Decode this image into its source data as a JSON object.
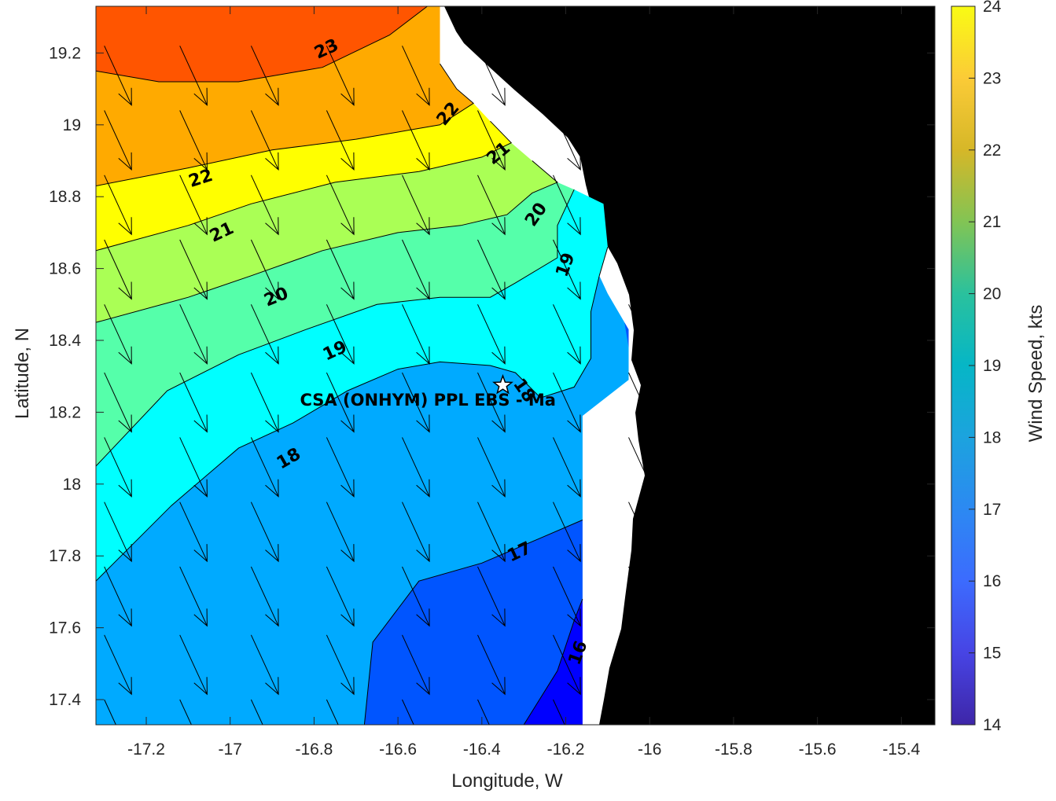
{
  "chart_data": {
    "type": "contour",
    "xlabel": "Longitude, W",
    "ylabel": "Latitude, N",
    "xlim": [
      -17.32,
      -15.32
    ],
    "ylim": [
      17.33,
      19.33
    ],
    "xticks": [
      -17.2,
      -17,
      -16.8,
      -16.6,
      -16.4,
      -16.2,
      -16,
      -15.8,
      -15.6,
      -15.4
    ],
    "xtick_labels": [
      "-17.2",
      "-17",
      "-16.8",
      "-16.6",
      "-16.4",
      "-16.2",
      "-16",
      "-15.8",
      "-15.6",
      "-15.4"
    ],
    "yticks": [
      17.4,
      17.6,
      17.8,
      18,
      18.2,
      18.4,
      18.6,
      18.8,
      19,
      19.2
    ],
    "ytick_labels": [
      "17.4",
      "17.6",
      "17.8",
      "18",
      "18.2",
      "18.4",
      "18.6",
      "18.8",
      "19",
      "19.2"
    ],
    "colorbar": {
      "label": "Wind Speed, kts",
      "range": [
        14,
        24
      ],
      "ticks": [
        14,
        15,
        16,
        17,
        18,
        19,
        20,
        21,
        22,
        23,
        24
      ],
      "tick_labels": [
        "14",
        "15",
        "16",
        "17",
        "18",
        "19",
        "20",
        "21",
        "22",
        "23",
        "24"
      ]
    },
    "contour_levels": [
      16,
      17,
      18,
      19,
      20,
      21,
      22,
      23
    ],
    "bands": [
      {
        "level": 24,
        "color": "#ff5500",
        "polygon": [
          [
            -17.32,
            19.33
          ],
          [
            -16.53,
            19.33
          ],
          [
            -16.62,
            19.25
          ],
          [
            -16.78,
            19.16
          ],
          [
            -16.98,
            19.12
          ],
          [
            -17.17,
            19.12
          ],
          [
            -17.32,
            19.15
          ]
        ]
      },
      {
        "level": 23,
        "color": "#ffaa00",
        "polygon": [
          [
            -17.32,
            19.15
          ],
          [
            -17.17,
            19.12
          ],
          [
            -16.98,
            19.12
          ],
          [
            -16.78,
            19.16
          ],
          [
            -16.62,
            19.25
          ],
          [
            -16.53,
            19.33
          ],
          [
            -16.5,
            19.33
          ],
          [
            -16.5,
            19.17
          ],
          [
            -16.46,
            19.1
          ],
          [
            -16.42,
            19.06
          ],
          [
            -16.5,
            19.0
          ],
          [
            -16.7,
            18.96
          ],
          [
            -16.9,
            18.93
          ],
          [
            -17.1,
            18.88
          ],
          [
            -17.32,
            18.83
          ]
        ]
      },
      {
        "level": 22,
        "color": "#ffff00",
        "polygon": [
          [
            -17.32,
            18.83
          ],
          [
            -17.1,
            18.88
          ],
          [
            -16.9,
            18.93
          ],
          [
            -16.7,
            18.96
          ],
          [
            -16.5,
            19.0
          ],
          [
            -16.42,
            19.06
          ],
          [
            -16.38,
            19.01
          ],
          [
            -16.33,
            18.95
          ],
          [
            -16.4,
            18.91
          ],
          [
            -16.55,
            18.87
          ],
          [
            -16.75,
            18.84
          ],
          [
            -16.95,
            18.78
          ],
          [
            -17.1,
            18.72
          ],
          [
            -17.32,
            18.65
          ]
        ]
      },
      {
        "level": 21,
        "color": "#aaff55",
        "polygon": [
          [
            -17.32,
            18.65
          ],
          [
            -17.1,
            18.72
          ],
          [
            -16.95,
            18.78
          ],
          [
            -16.75,
            18.84
          ],
          [
            -16.55,
            18.87
          ],
          [
            -16.4,
            18.91
          ],
          [
            -16.33,
            18.95
          ],
          [
            -16.28,
            18.9
          ],
          [
            -16.22,
            18.84
          ],
          [
            -16.28,
            18.81
          ],
          [
            -16.34,
            18.75
          ],
          [
            -16.45,
            18.72
          ],
          [
            -16.6,
            18.7
          ],
          [
            -16.78,
            18.65
          ],
          [
            -16.95,
            18.58
          ],
          [
            -17.1,
            18.52
          ],
          [
            -17.32,
            18.45
          ]
        ]
      },
      {
        "level": 20,
        "color": "#55ffaa",
        "polygon": [
          [
            -17.32,
            18.45
          ],
          [
            -17.1,
            18.52
          ],
          [
            -16.95,
            18.58
          ],
          [
            -16.78,
            18.65
          ],
          [
            -16.6,
            18.7
          ],
          [
            -16.45,
            18.72
          ],
          [
            -16.34,
            18.75
          ],
          [
            -16.28,
            18.81
          ],
          [
            -16.22,
            18.84
          ],
          [
            -16.18,
            18.82
          ],
          [
            -16.22,
            18.72
          ],
          [
            -16.22,
            18.63
          ],
          [
            -16.32,
            18.56
          ],
          [
            -16.38,
            18.52
          ],
          [
            -16.5,
            18.52
          ],
          [
            -16.65,
            18.5
          ],
          [
            -16.82,
            18.43
          ],
          [
            -16.98,
            18.36
          ],
          [
            -17.15,
            18.26
          ],
          [
            -17.32,
            18.05
          ]
        ]
      },
      {
        "level": 19,
        "color": "#00ffff",
        "polygon": [
          [
            -17.32,
            18.05
          ],
          [
            -17.15,
            18.26
          ],
          [
            -16.98,
            18.36
          ],
          [
            -16.82,
            18.43
          ],
          [
            -16.65,
            18.5
          ],
          [
            -16.5,
            18.52
          ],
          [
            -16.38,
            18.52
          ],
          [
            -16.32,
            18.56
          ],
          [
            -16.22,
            18.63
          ],
          [
            -16.22,
            18.72
          ],
          [
            -16.18,
            18.82
          ],
          [
            -16.11,
            18.78
          ],
          [
            -16.1,
            18.66
          ],
          [
            -16.12,
            18.58
          ],
          [
            -16.14,
            18.48
          ],
          [
            -16.14,
            18.35
          ],
          [
            -16.18,
            18.27
          ],
          [
            -16.26,
            18.24
          ],
          [
            -16.32,
            18.31
          ],
          [
            -16.38,
            18.33
          ],
          [
            -16.5,
            18.34
          ],
          [
            -16.6,
            18.32
          ],
          [
            -16.72,
            18.26
          ],
          [
            -16.85,
            18.17
          ],
          [
            -16.98,
            18.1
          ],
          [
            -17.14,
            17.94
          ],
          [
            -17.32,
            17.73
          ]
        ]
      },
      {
        "level": 18,
        "color": "#00aaff",
        "polygon": [
          [
            -17.32,
            17.73
          ],
          [
            -17.14,
            17.94
          ],
          [
            -16.98,
            18.1
          ],
          [
            -16.85,
            18.17
          ],
          [
            -16.72,
            18.26
          ],
          [
            -16.6,
            18.32
          ],
          [
            -16.5,
            18.34
          ],
          [
            -16.38,
            18.33
          ],
          [
            -16.32,
            18.31
          ],
          [
            -16.26,
            18.24
          ],
          [
            -16.18,
            18.27
          ],
          [
            -16.14,
            18.35
          ],
          [
            -16.14,
            18.48
          ],
          [
            -16.12,
            18.58
          ],
          [
            -16.1,
            18.53
          ],
          [
            -16.05,
            18.43
          ],
          [
            -16.05,
            18.29
          ],
          [
            -16.16,
            18.19
          ],
          [
            -16.16,
            17.9
          ],
          [
            -16.26,
            17.85
          ],
          [
            -16.4,
            17.78
          ],
          [
            -16.55,
            17.73
          ],
          [
            -16.66,
            17.56
          ],
          [
            -16.68,
            17.33
          ],
          [
            -17.32,
            17.33
          ]
        ]
      },
      {
        "level": 17,
        "color": "#0055ff",
        "polygon": [
          [
            -16.68,
            17.33
          ],
          [
            -16.66,
            17.56
          ],
          [
            -16.55,
            17.73
          ],
          [
            -16.4,
            17.78
          ],
          [
            -16.26,
            17.85
          ],
          [
            -16.16,
            17.9
          ],
          [
            -16.16,
            17.68
          ],
          [
            -16.18,
            17.62
          ],
          [
            -16.22,
            17.48
          ],
          [
            -16.3,
            17.33
          ]
        ]
      },
      {
        "level": 16,
        "color": "#0000ff",
        "polygon": [
          [
            -16.3,
            17.33
          ],
          [
            -16.22,
            17.48
          ],
          [
            -16.18,
            17.62
          ],
          [
            -16.16,
            17.68
          ],
          [
            -16.16,
            17.33
          ]
        ]
      },
      {
        "level": 17,
        "color": "#0055ff",
        "polygon": [
          [
            -16.1,
            18.53
          ],
          [
            -16.06,
            18.45
          ],
          [
            -16.05,
            18.38
          ],
          [
            -16.05,
            18.43
          ]
        ]
      }
    ],
    "contour_lines": [
      {
        "level": 23,
        "points": [
          [
            -17.32,
            19.15
          ],
          [
            -17.17,
            19.12
          ],
          [
            -16.98,
            19.12
          ],
          [
            -16.78,
            19.16
          ],
          [
            -16.62,
            19.25
          ],
          [
            -16.53,
            19.33
          ]
        ]
      },
      {
        "level": 22,
        "points": [
          [
            -17.32,
            18.83
          ],
          [
            -17.1,
            18.88
          ],
          [
            -16.9,
            18.93
          ],
          [
            -16.7,
            18.96
          ],
          [
            -16.5,
            19.0
          ],
          [
            -16.42,
            19.06
          ],
          [
            -16.46,
            19.1
          ],
          [
            -16.5,
            19.17
          ]
        ]
      },
      {
        "level": 21,
        "points": [
          [
            -17.32,
            18.65
          ],
          [
            -17.1,
            18.72
          ],
          [
            -16.95,
            18.78
          ],
          [
            -16.75,
            18.84
          ],
          [
            -16.55,
            18.87
          ],
          [
            -16.4,
            18.91
          ],
          [
            -16.33,
            18.95
          ],
          [
            -16.38,
            19.01
          ]
        ]
      },
      {
        "level": 20,
        "points": [
          [
            -17.32,
            18.45
          ],
          [
            -17.1,
            18.52
          ],
          [
            -16.95,
            18.58
          ],
          [
            -16.78,
            18.65
          ],
          [
            -16.6,
            18.7
          ],
          [
            -16.45,
            18.72
          ],
          [
            -16.34,
            18.75
          ],
          [
            -16.28,
            18.81
          ],
          [
            -16.22,
            18.84
          ],
          [
            -16.28,
            18.9
          ]
        ]
      },
      {
        "level": 19,
        "points": [
          [
            -17.32,
            18.05
          ],
          [
            -17.15,
            18.26
          ],
          [
            -16.98,
            18.36
          ],
          [
            -16.82,
            18.43
          ],
          [
            -16.65,
            18.5
          ],
          [
            -16.5,
            18.52
          ],
          [
            -16.38,
            18.52
          ],
          [
            -16.32,
            18.56
          ],
          [
            -16.22,
            18.63
          ],
          [
            -16.22,
            18.72
          ],
          [
            -16.18,
            18.82
          ]
        ]
      },
      {
        "level": 18,
        "points": [
          [
            -17.32,
            17.73
          ],
          [
            -17.14,
            17.94
          ],
          [
            -16.98,
            18.1
          ],
          [
            -16.85,
            18.17
          ],
          [
            -16.72,
            18.26
          ],
          [
            -16.6,
            18.32
          ],
          [
            -16.5,
            18.34
          ],
          [
            -16.38,
            18.33
          ],
          [
            -16.32,
            18.31
          ],
          [
            -16.26,
            18.24
          ],
          [
            -16.18,
            18.27
          ],
          [
            -16.14,
            18.35
          ],
          [
            -16.14,
            18.48
          ],
          [
            -16.12,
            18.58
          ],
          [
            -16.1,
            18.66
          ]
        ]
      },
      {
        "level": 17,
        "points": [
          [
            -16.68,
            17.33
          ],
          [
            -16.66,
            17.56
          ],
          [
            -16.55,
            17.73
          ],
          [
            -16.4,
            17.78
          ],
          [
            -16.26,
            17.85
          ],
          [
            -16.16,
            17.9
          ]
        ]
      },
      {
        "level": 16,
        "points": [
          [
            -16.3,
            17.33
          ],
          [
            -16.22,
            17.48
          ],
          [
            -16.18,
            17.62
          ],
          [
            -16.16,
            17.68
          ]
        ]
      }
    ],
    "contour_labels": [
      {
        "text": "23",
        "lon": -16.77,
        "lat": 19.21,
        "angle": -25
      },
      {
        "text": "22",
        "lon": -16.48,
        "lat": 19.03,
        "angle": -50
      },
      {
        "text": "22",
        "lon": -17.07,
        "lat": 18.85,
        "angle": -18
      },
      {
        "text": "21",
        "lon": -16.36,
        "lat": 18.92,
        "angle": -40
      },
      {
        "text": "21",
        "lon": -17.02,
        "lat": 18.7,
        "angle": -25
      },
      {
        "text": "20",
        "lon": -16.27,
        "lat": 18.75,
        "angle": -55
      },
      {
        "text": "20",
        "lon": -16.89,
        "lat": 18.52,
        "angle": -22
      },
      {
        "text": "19",
        "lon": -16.2,
        "lat": 18.61,
        "angle": -70
      },
      {
        "text": "19",
        "lon": -16.75,
        "lat": 18.37,
        "angle": -25
      },
      {
        "text": "18",
        "lon": -16.3,
        "lat": 18.26,
        "angle": 55
      },
      {
        "text": "18",
        "lon": -16.86,
        "lat": 18.07,
        "angle": -30
      },
      {
        "text": "17",
        "lon": -16.31,
        "lat": 17.81,
        "angle": -25
      },
      {
        "text": "16",
        "lon": -16.17,
        "lat": 17.53,
        "angle": -70
      }
    ],
    "wind_vectors": {
      "lons": [
        -17.3,
        -17.12,
        -16.95,
        -16.77,
        -16.59,
        -16.41,
        -16.23,
        -16.05
      ],
      "lats": [
        17.4,
        17.58,
        17.77,
        17.95,
        18.13,
        18.31,
        18.5,
        18.68,
        18.86,
        19.04,
        19.22
      ],
      "du": 0.065,
      "dv": -0.165
    },
    "land_color": "#000000",
    "masked_color": "#ffffff",
    "site": {
      "label": "CSA (ONHYM) PPL EBS  - Ma",
      "lon": -16.35,
      "lat": 18.275,
      "marker": "star"
    }
  }
}
